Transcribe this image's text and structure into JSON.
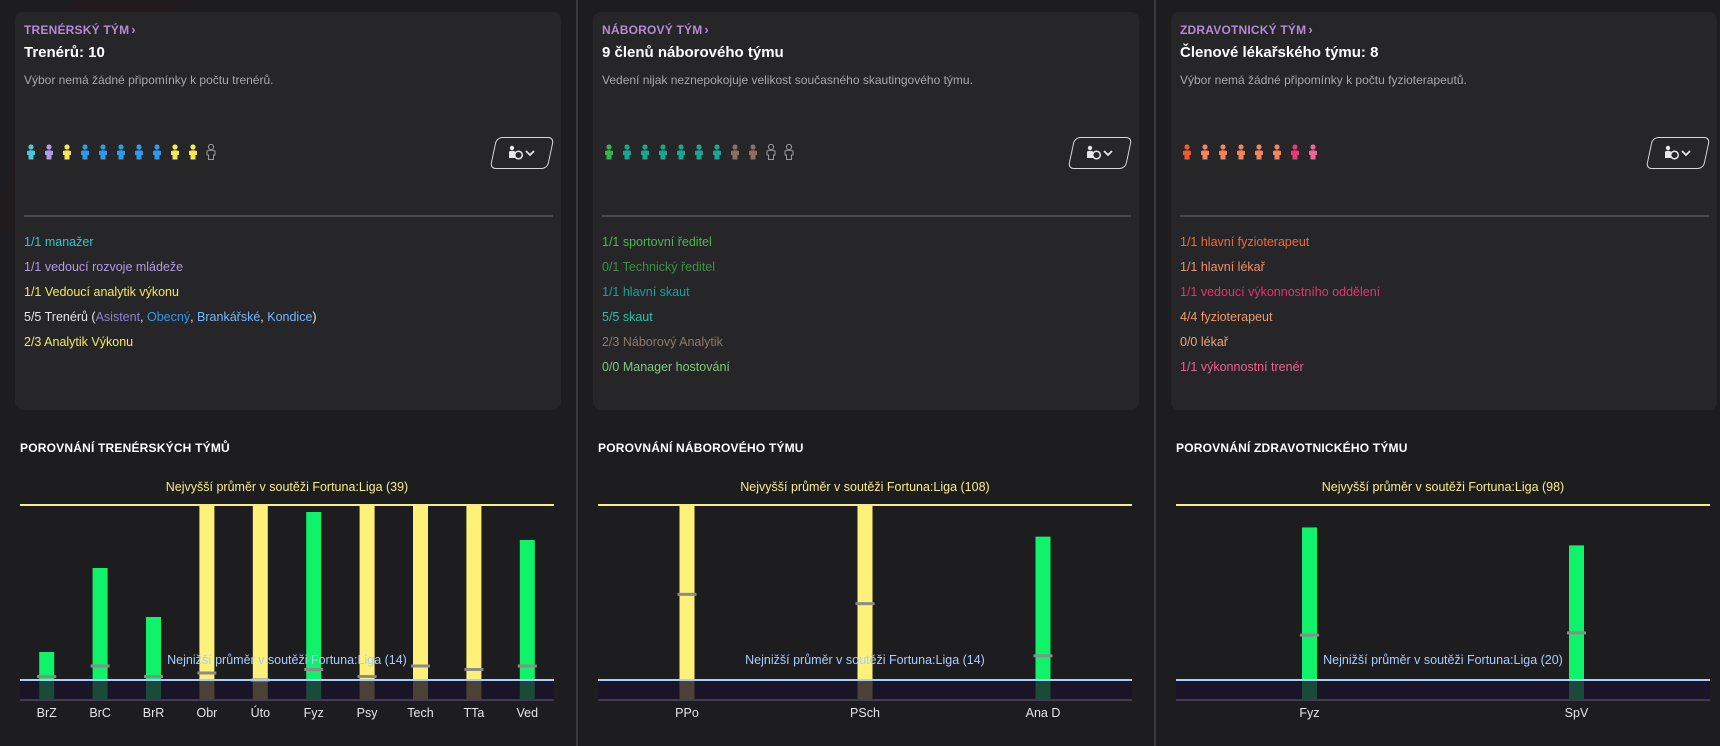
{
  "colors": {
    "head": "#b58ad6",
    "max_line": "#f6ec88",
    "min_line": "#a9ccff",
    "bar_yellow": "#fdf17a",
    "bar_green": "#10f26a",
    "marker": "#8c8c8c"
  },
  "panels": [
    {
      "header": "TRENÉRSKÝ TÝM",
      "title": "Trenérů: 10",
      "description": "Výbor nemá žádné připomínky k počtu trenérů.",
      "people_colors": [
        "#48c7d8",
        "#b29ae6",
        "#f3e75a",
        "#2f9ae8",
        "#2f9ae8",
        "#2f9ae8",
        "#2f9ae8",
        "#2f9ae8",
        "#f3e75a",
        "#f3e75a",
        "outline"
      ],
      "role_button_icon": "staff-role-icon",
      "staff_lines": [
        {
          "segments": [
            {
              "text": "1/1 manažer",
              "color": "#39c2cf"
            }
          ]
        },
        {
          "segments": [
            {
              "text": "1/1 vedoucí rozvoje mládeže",
              "color": "#b29ae6"
            }
          ]
        },
        {
          "segments": [
            {
              "text": "1/1 Vedoucí analytik výkonu",
              "color": "#f3e75a"
            }
          ]
        },
        {
          "segments": [
            {
              "text": "5/5 Trenérů (",
              "color": "#e6e6e6"
            },
            {
              "text": "Asistent",
              "color": "#8f7fd8"
            },
            {
              "text": ", ",
              "color": "#e6e6e6"
            },
            {
              "text": "Obecný",
              "color": "#2f9ae8"
            },
            {
              "text": ", ",
              "color": "#e6e6e6"
            },
            {
              "text": "Brankářské",
              "color": "#74b7ff"
            },
            {
              "text": ", ",
              "color": "#e6e6e6"
            },
            {
              "text": "Kondice",
              "color": "#74b7ff"
            },
            {
              "text": ")",
              "color": "#e6e6e6"
            }
          ]
        },
        {
          "segments": [
            {
              "text": "2/3 Analytik Výkonu",
              "color": "#f3e75a"
            }
          ]
        }
      ],
      "comparison_title": "POROVNÁNÍ TRENÉRSKÝCH TÝMŮ",
      "chart_data": {
        "type": "bar",
        "title": "POROVNÁNÍ TRENÉRSKÝCH TÝMŮ",
        "categories": [
          "BrZ",
          "BrC",
          "BrR",
          "Obr",
          "Úto",
          "Fyz",
          "Psy",
          "Tech",
          "TTa",
          "Ved"
        ],
        "values": [
          18,
          30,
          23,
          39,
          39,
          38,
          39,
          39,
          39,
          34
        ],
        "league_average": [
          14.5,
          16,
          14.5,
          15,
          10.5,
          15.5,
          14.5,
          16,
          15.5,
          16
        ],
        "colors": [
          "green",
          "green",
          "green",
          "yellow",
          "yellow",
          "green",
          "yellow",
          "yellow",
          "yellow",
          "green"
        ],
        "max_label": "Nejvyšší průměr v soutěži Fortuna:Liga (39)",
        "min_label": "Nejnižší průměr v soutěži Fortuna:Liga (14)",
        "max_value": 39,
        "min_value": 14,
        "xlabel": "",
        "ylabel": ""
      }
    },
    {
      "header": "NÁBOROVÝ TÝM",
      "title": "9 členů náborového týmu",
      "description": "Vedení nijak neznepokojuje velikost současného skautingového týmu.",
      "people_colors": [
        "#37b24d",
        "#18a68c",
        "#18a68c",
        "#18a68c",
        "#18a68c",
        "#18a68c",
        "#18a68c",
        "#8d6e63",
        "#8d6e63",
        "outline",
        "outline"
      ],
      "role_button_icon": "staff-role-icon",
      "staff_lines": [
        {
          "segments": [
            {
              "text": "1/1 sportovní ředitel",
              "color": "#49b84f"
            }
          ]
        },
        {
          "segments": [
            {
              "text": "0/1 Technický ředitel",
              "color": "#3d8f44"
            }
          ]
        },
        {
          "segments": [
            {
              "text": "1/1 hlavní skaut",
              "color": "#15a39a"
            }
          ]
        },
        {
          "segments": [
            {
              "text": "5/5 skaut",
              "color": "#25c2a7"
            }
          ]
        },
        {
          "segments": [
            {
              "text": "2/3 Náborový Analytik",
              "color": "#8d7a6e"
            }
          ]
        },
        {
          "segments": [
            {
              "text": "0/0 Manager hostování",
              "color": "#7fc87f"
            }
          ]
        }
      ],
      "comparison_title": "POROVNÁNÍ NÁBOROVÉHO TÝMU",
      "chart_data": {
        "type": "bar",
        "title": "POROVNÁNÍ NÁBOROVÉHO TÝMU",
        "categories": [
          "PPo",
          "PSch",
          "Ana D"
        ],
        "values": [
          108,
          108,
          91
        ],
        "league_average": [
          60,
          55,
          27
        ],
        "colors": [
          "yellow",
          "yellow",
          "green"
        ],
        "max_label": "Nejvyšší průměr v soutěži Fortuna:Liga (108)",
        "min_label": "Nejnižší průměr v soutěži Fortuna:Liga (14)",
        "max_value": 108,
        "min_value": 14,
        "xlabel": "",
        "ylabel": ""
      }
    },
    {
      "header": "ZDRAVOTNICKÝ TÝM",
      "title": "Členové lékařského týmu: 8",
      "description": "Výbor nemá žádné připomínky k počtu fyzioterapeutů.",
      "people_colors": [
        "#ee5a2a",
        "#f0845a",
        "#f0845a",
        "#f0845a",
        "#f0845a",
        "#f0845a",
        "#e83a73",
        "#f06595"
      ],
      "role_button_icon": "staff-role-icon",
      "staff_lines": [
        {
          "segments": [
            {
              "text": "1/1 hlavní fyzioterapeut",
              "color": "#ec6a3a"
            }
          ]
        },
        {
          "segments": [
            {
              "text": "1/1 hlavní lékař",
              "color": "#f0906a"
            }
          ]
        },
        {
          "segments": [
            {
              "text": "1/1 vedoucí výkonnostního oddělení",
              "color": "#e4356b"
            }
          ]
        },
        {
          "segments": [
            {
              "text": "4/4 fyzioterapeut",
              "color": "#f29a64"
            }
          ]
        },
        {
          "segments": [
            {
              "text": "0/0 lékař",
              "color": "#f0a27a"
            }
          ]
        },
        {
          "segments": [
            {
              "text": "1/1 výkonnostní trenér",
              "color": "#ef5f8c"
            }
          ]
        }
      ],
      "comparison_title": "POROVNÁNÍ ZDRAVOTNICKÉHO TÝMU",
      "chart_data": {
        "type": "bar",
        "title": "POROVNÁNÍ ZDRAVOTNICKÉHO TÝMU",
        "categories": [
          "Fyz",
          "SpV"
        ],
        "values": [
          88,
          80
        ],
        "league_average": [
          40,
          41
        ],
        "colors": [
          "green",
          "green"
        ],
        "max_label": "Nejvyšší průměr v soutěži Fortuna:Liga (98)",
        "min_label": "Nejnižší průměr v soutěži Fortuna:Liga (20)",
        "max_value": 98,
        "min_value": 20,
        "xlabel": "",
        "ylabel": ""
      }
    }
  ]
}
